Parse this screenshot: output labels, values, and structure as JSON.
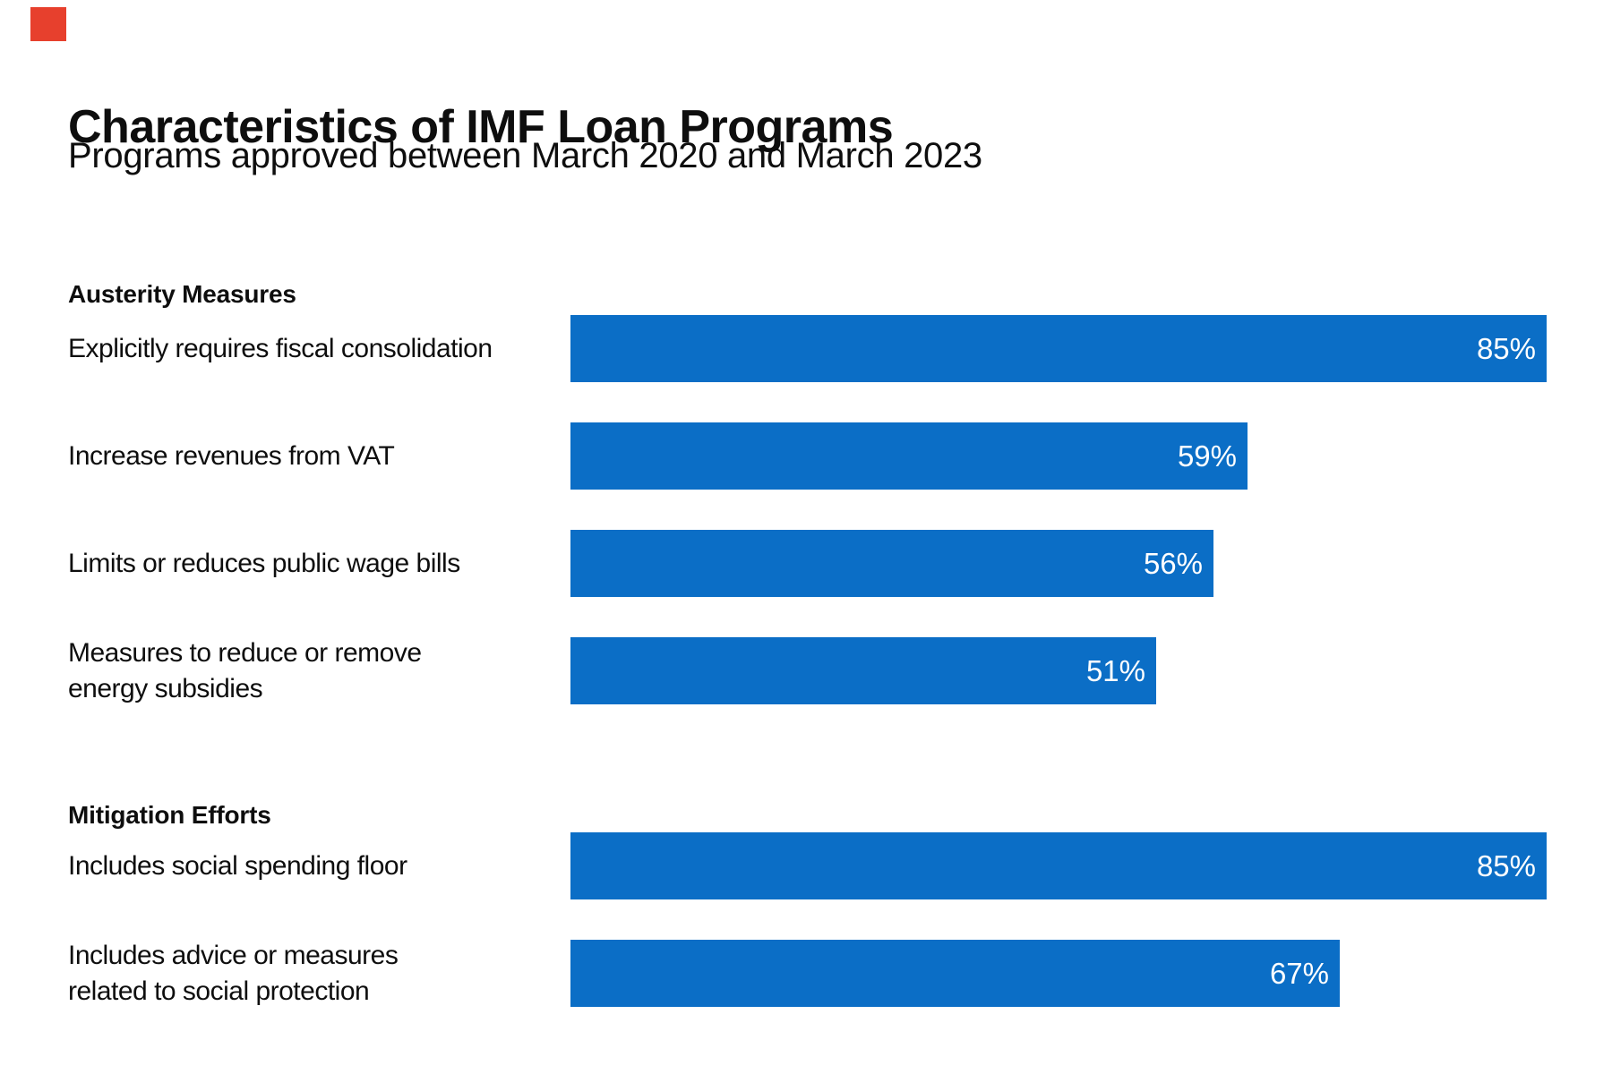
{
  "colors": {
    "bar_blue": "#0b6ec6",
    "marker_red": "#e7402d",
    "text": "#0e0e0e",
    "value_label_text": "#ffffff",
    "background": "#ffffff"
  },
  "marker": {
    "name": "red-square"
  },
  "chart_data": {
    "type": "bar",
    "orientation": "horizontal",
    "title": "Characteristics of IMF Loan Programs",
    "subtitle": "Programs approved between March 2020 and March 2023",
    "unit": "%",
    "xlim": [
      0,
      100
    ],
    "grid": false,
    "legend": false,
    "value_labels_position": "inside-end",
    "sections": [
      {
        "header": "Austerity Measures",
        "rows": [
          {
            "label_lines": [
              "Explicitly requires fiscal consolidation"
            ],
            "value": 85,
            "value_label": "85%"
          },
          {
            "label_lines": [
              "Increase revenues from VAT"
            ],
            "value": 59,
            "value_label": "59%"
          },
          {
            "label_lines": [
              "Limits or reduces public wage bills"
            ],
            "value": 56,
            "value_label": "56%"
          },
          {
            "label_lines": [
              "Measures to reduce or remove",
              "energy subsidies"
            ],
            "value": 51,
            "value_label": "51%"
          }
        ]
      },
      {
        "header": "Mitigation Efforts",
        "rows": [
          {
            "label_lines": [
              "Includes social spending floor"
            ],
            "value": 85,
            "value_label": "85%"
          },
          {
            "label_lines": [
              "Includes advice or measures",
              "related to social protection"
            ],
            "value": 67,
            "value_label": "67%"
          }
        ]
      }
    ]
  }
}
